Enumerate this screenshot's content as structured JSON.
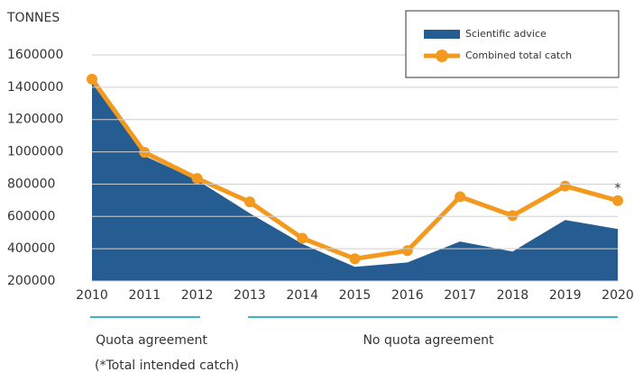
{
  "chart_data": {
    "type": "area-line",
    "y_axis_label": "TONNES",
    "categories": [
      "2010",
      "2011",
      "2012",
      "2013",
      "2014",
      "2015",
      "2016",
      "2017",
      "2018",
      "2019",
      "2020"
    ],
    "series": [
      {
        "name": "Scientific advice",
        "color": "#255d92",
        "kind": "area",
        "values": [
          1450000,
          975000,
          825000,
          620000,
          430000,
          288000,
          315000,
          445000,
          383000,
          578000,
          522000
        ]
      },
      {
        "name": "Combined total catch",
        "color": "#f39a1e",
        "kind": "line",
        "values": [
          1450000,
          997000,
          835000,
          690000,
          465000,
          338000,
          388000,
          722000,
          605000,
          788000,
          698000
        ]
      }
    ],
    "ylim": [
      200000,
      1600000
    ],
    "yticks": [
      200000,
      400000,
      600000,
      800000,
      1000000,
      1200000,
      1400000,
      1600000
    ],
    "grid": true,
    "legend": "upper right",
    "annotations": {
      "last_point": "*",
      "period_1": "Quota agreement",
      "period_2": "No quota agreement",
      "note": "(*Total intended catch)"
    }
  }
}
